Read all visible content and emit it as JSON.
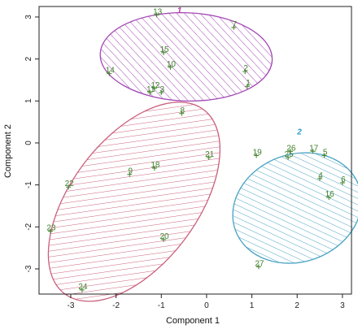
{
  "chart_data": {
    "type": "scatter",
    "title": "",
    "xlabel": "Component 1",
    "ylabel": "Component 2",
    "xlim": [
      -3.7,
      3.2
    ],
    "ylim": [
      -3.6,
      3.25
    ],
    "x_ticks": [
      -3,
      -2,
      -1,
      0,
      1,
      2,
      3
    ],
    "y_ticks": [
      -3,
      -2,
      -1,
      0,
      1,
      2,
      3
    ],
    "grid": false,
    "legend": "none",
    "points": [
      {
        "label": "1",
        "x": 0.9,
        "y": 1.35
      },
      {
        "label": "2",
        "x": 0.85,
        "y": 1.7
      },
      {
        "label": "3",
        "x": -1.0,
        "y": 1.2
      },
      {
        "label": "4",
        "x": 2.5,
        "y": -0.85
      },
      {
        "label": "5",
        "x": 2.6,
        "y": -0.3
      },
      {
        "label": "6",
        "x": 3.0,
        "y": -0.95
      },
      {
        "label": "7",
        "x": 0.6,
        "y": 2.75
      },
      {
        "label": "8",
        "x": -0.55,
        "y": 0.7
      },
      {
        "label": "9",
        "x": -1.7,
        "y": -0.75
      },
      {
        "label": "10",
        "x": -0.8,
        "y": 1.8
      },
      {
        "label": "11",
        "x": -1.25,
        "y": 1.2
      },
      {
        "label": "12",
        "x": -1.15,
        "y": 1.3
      },
      {
        "label": "13",
        "x": -1.1,
        "y": 3.05
      },
      {
        "label": "14",
        "x": -2.15,
        "y": 1.65
      },
      {
        "label": "15",
        "x": -0.95,
        "y": 2.15
      },
      {
        "label": "16",
        "x": 2.7,
        "y": -1.3
      },
      {
        "label": "17",
        "x": 2.35,
        "y": -0.2
      },
      {
        "label": "18",
        "x": -1.15,
        "y": -0.6
      },
      {
        "label": "19",
        "x": 1.1,
        "y": -0.3
      },
      {
        "label": "20",
        "x": -0.95,
        "y": -2.3
      },
      {
        "label": "21",
        "x": 0.05,
        "y": -0.35
      },
      {
        "label": "22",
        "x": -3.05,
        "y": -1.05
      },
      {
        "label": "23",
        "x": -3.45,
        "y": -2.1
      },
      {
        "label": "24",
        "x": -2.75,
        "y": -3.5
      },
      {
        "label": "25",
        "x": 1.8,
        "y": -0.35
      },
      {
        "label": "26",
        "x": 1.85,
        "y": -0.2
      },
      {
        "label": "27",
        "x": 1.15,
        "y": -2.95
      }
    ],
    "clusters": [
      {
        "label": "1",
        "center_x": -0.45,
        "center_y": 2.05,
        "radius_x": 1.9,
        "radius_y": 1.05,
        "angle_deg": -2,
        "color": "#a347b5",
        "label_color": "#b33ba8",
        "label_x": -0.6,
        "label_y": 3.1
      },
      {
        "label": "2",
        "center_x": 2.0,
        "center_y": -1.55,
        "radius_x": 1.45,
        "radius_y": 1.28,
        "angle_deg": 20,
        "color": "#4aa3c4",
        "label_color": "#2b9ed1",
        "label_x": 2.05,
        "label_y": 0.2
      },
      {
        "label": "",
        "center_x": -1.6,
        "center_y": -1.4,
        "radius_x": 2.55,
        "radius_y": 1.5,
        "angle_deg": 53,
        "color": "#c9607c",
        "label_color": "#c9607c",
        "label_x": 0,
        "label_y": 0
      }
    ],
    "point_color": "#3f7f2a"
  }
}
